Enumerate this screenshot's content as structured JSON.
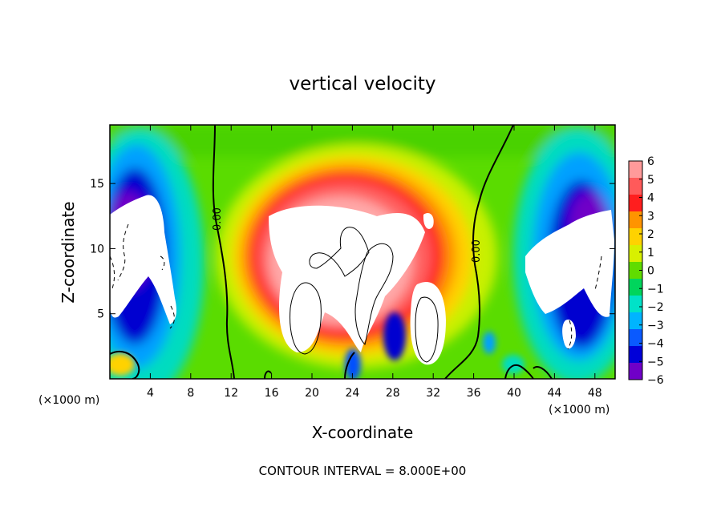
{
  "chart_data": {
    "type": "heatmap",
    "title": "vertical velocity",
    "xlabel": "X-coordinate",
    "ylabel": "Z-coordinate",
    "x_unit": "(×1000 m)",
    "z_unit": "(×1000 m)",
    "xlim": [
      0,
      50
    ],
    "zlim": [
      0,
      19.5
    ],
    "x_ticks": [
      "4",
      "8",
      "12",
      "16",
      "20",
      "24",
      "28",
      "32",
      "36",
      "40",
      "44",
      "48"
    ],
    "z_ticks": [
      "5",
      "10",
      "15"
    ],
    "colorbar_ticks": [
      "6",
      "5",
      "4",
      "3",
      "2",
      "1",
      "0",
      "−1",
      "−2",
      "−3",
      "−4",
      "−5",
      "−6"
    ],
    "colorbar_colors": [
      "#ff9a9a",
      "#ff5a5a",
      "#ff1e1e",
      "#ff9400",
      "#ffd200",
      "#d8f000",
      "#60dc00",
      "#00d55c",
      "#00e2c8",
      "#00b4ff",
      "#0a5aff",
      "#0000d8",
      "#7000c8"
    ],
    "contour_label": "0.00",
    "contour_interval_text": "CONTOUR INTERVAL = 8.000E+00",
    "features": [
      {
        "kind": "updraft-core",
        "x_range": [
          14,
          35
        ],
        "z_range": [
          1,
          17
        ],
        "value": "> 6"
      },
      {
        "kind": "downdraft-core",
        "x_range": [
          0,
          6
        ],
        "z_range": [
          4,
          15
        ],
        "value": "< -6"
      },
      {
        "kind": "downdraft-core",
        "x_range": [
          40,
          50
        ],
        "z_range": [
          2,
          13.5
        ],
        "value": "< -6"
      }
    ]
  }
}
